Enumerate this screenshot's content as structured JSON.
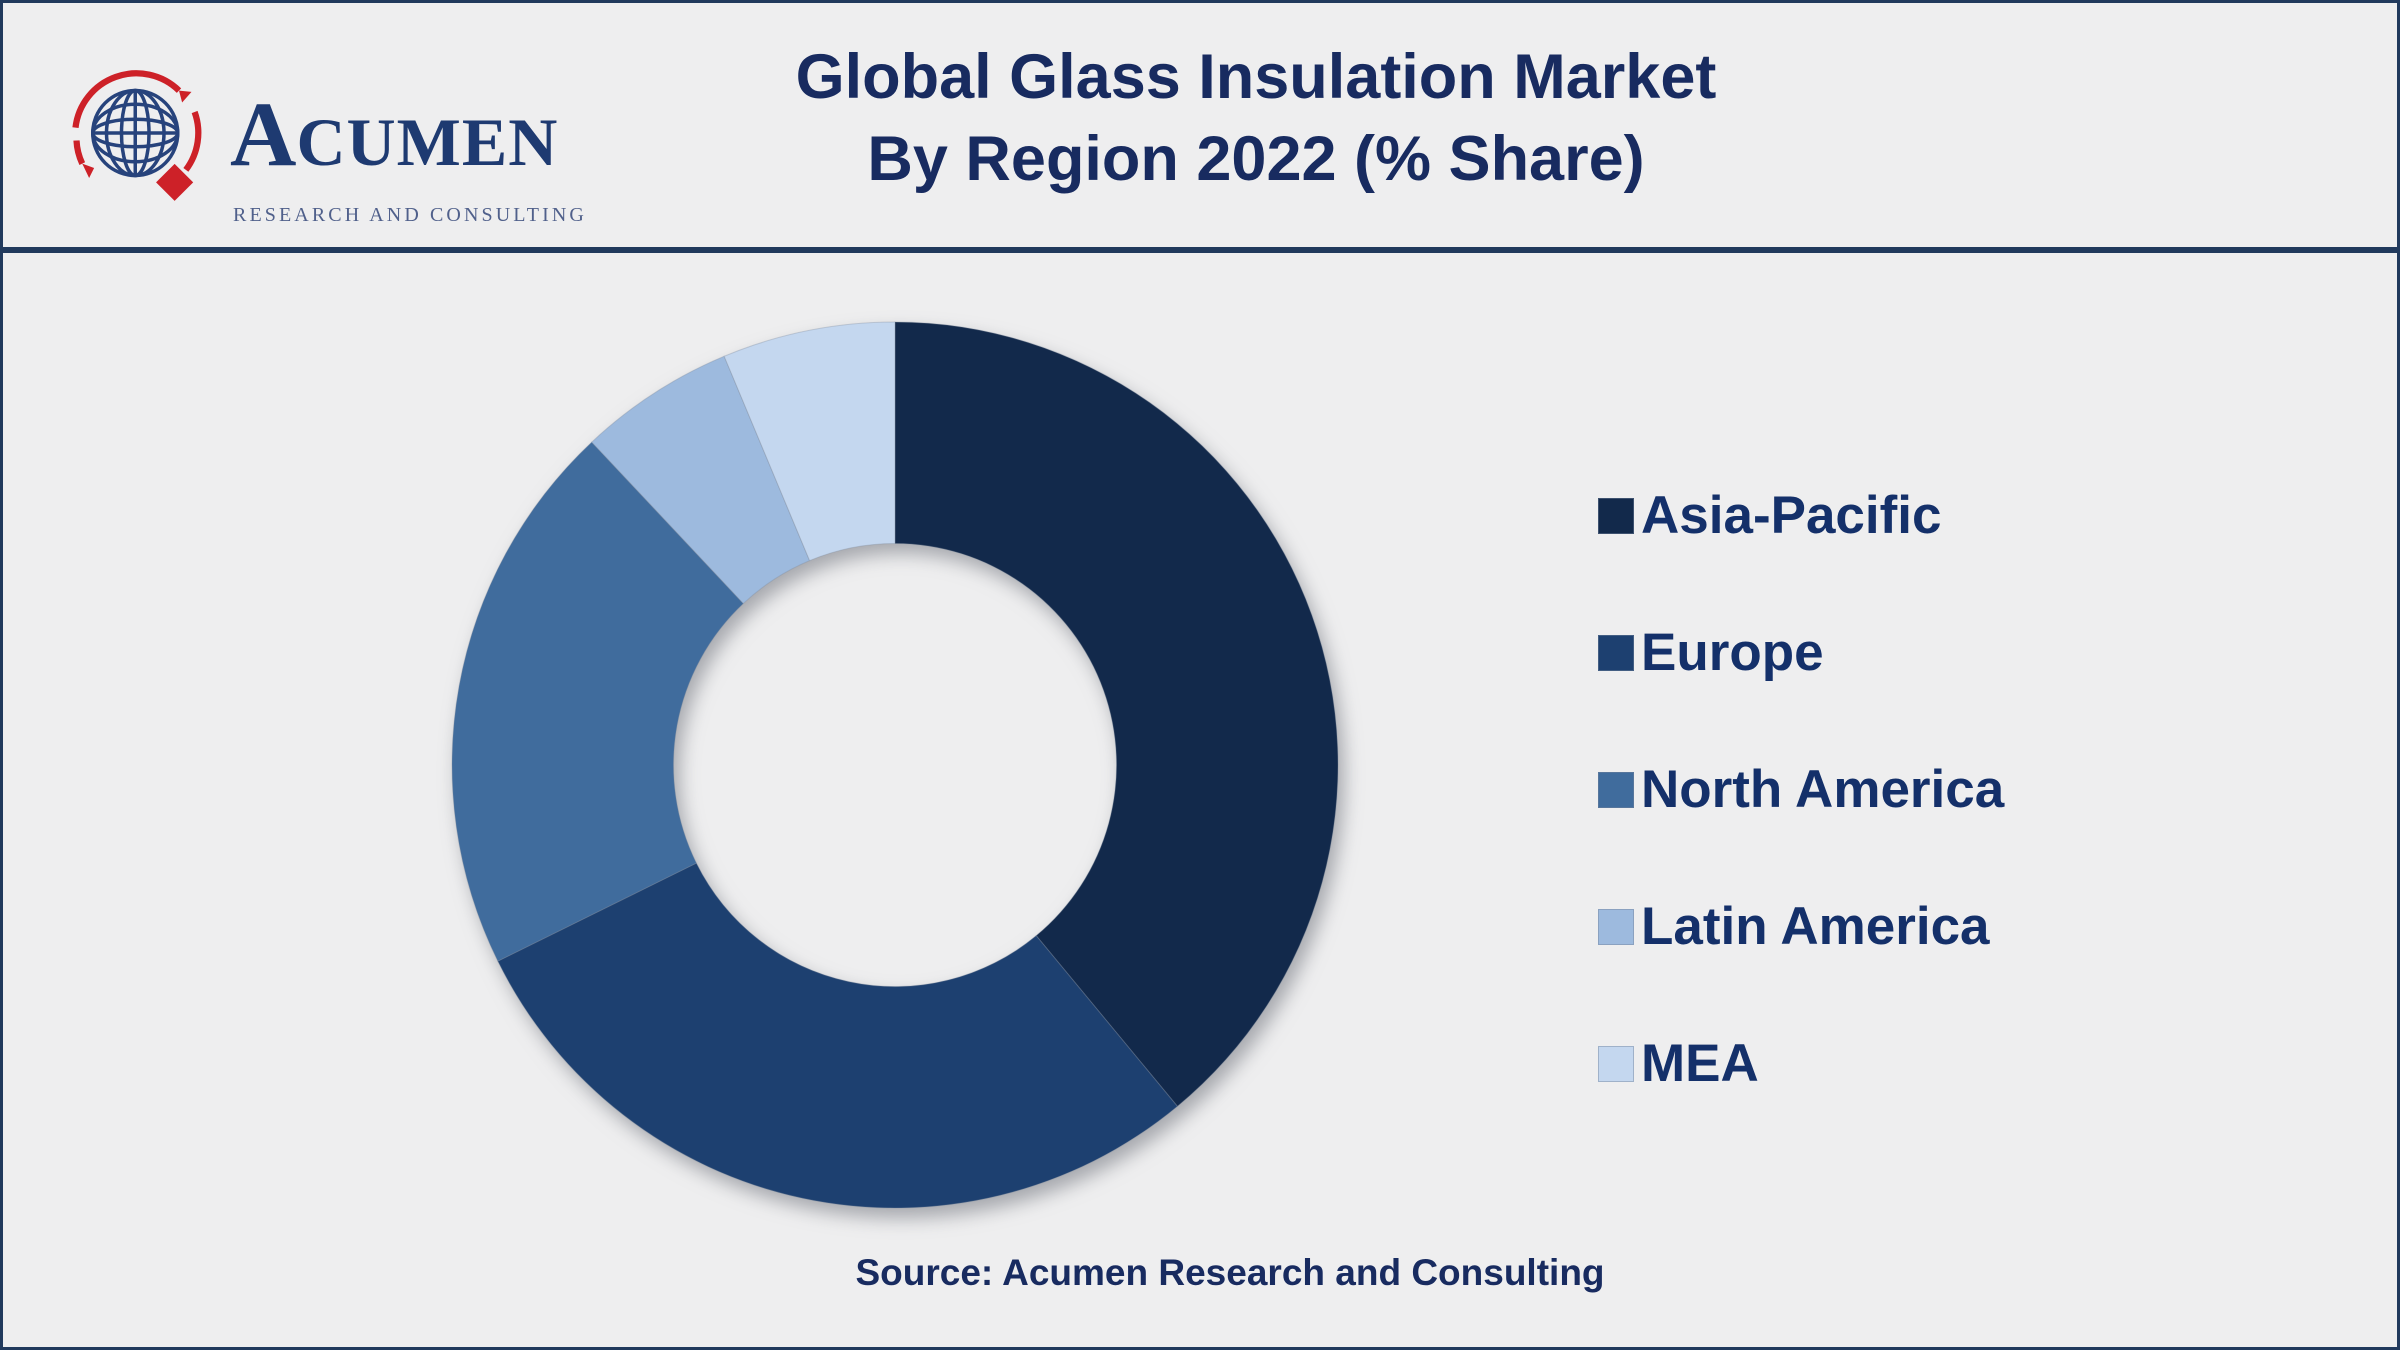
{
  "page": {
    "background": "#eeeeef",
    "border_color": "#21395c"
  },
  "header": {
    "title_line1": "Global Glass Insulation Market",
    "title_line2": "By Region 2022 (% Share)",
    "title_color": "#182b60",
    "logo": {
      "brand_initial": "A",
      "brand_rest": "CUMEN",
      "tagline": "RESEARCH AND CONSULTING",
      "navy": "#27437c",
      "red": "#cd2128"
    }
  },
  "chart_data": {
    "type": "pie",
    "subtype": "donut",
    "title": "Global Glass Insulation Market By Region 2022 (% Share)",
    "unit": "percent share (labels not shown on chart, estimated from arc angles)",
    "categories": [
      "Asia-Pacific",
      "Europe",
      "North America",
      "Latin America",
      "MEA"
    ],
    "values": [
      39,
      28.7,
      20.3,
      5.7,
      6.3
    ],
    "colors": [
      "#12294b",
      "#1d4070",
      "#406c9d",
      "#9dbade",
      "#c4d7ef"
    ],
    "start_angle_deg": 0,
    "direction": "clockwise",
    "inner_radius_ratio": 0.5,
    "legend_position": "right",
    "grid": false
  },
  "legend": {
    "text_color": "#14306a",
    "items": [
      {
        "label": "Asia-Pacific",
        "color": "#12294b"
      },
      {
        "label": "Europe",
        "color": "#1d4070"
      },
      {
        "label": "North America",
        "color": "#406c9d"
      },
      {
        "label": "Latin America",
        "color": "#9dbade"
      },
      {
        "label": "MEA",
        "color": "#c4d7ef"
      }
    ]
  },
  "footer": {
    "source_text": "Source: Acumen Research and Consulting"
  }
}
